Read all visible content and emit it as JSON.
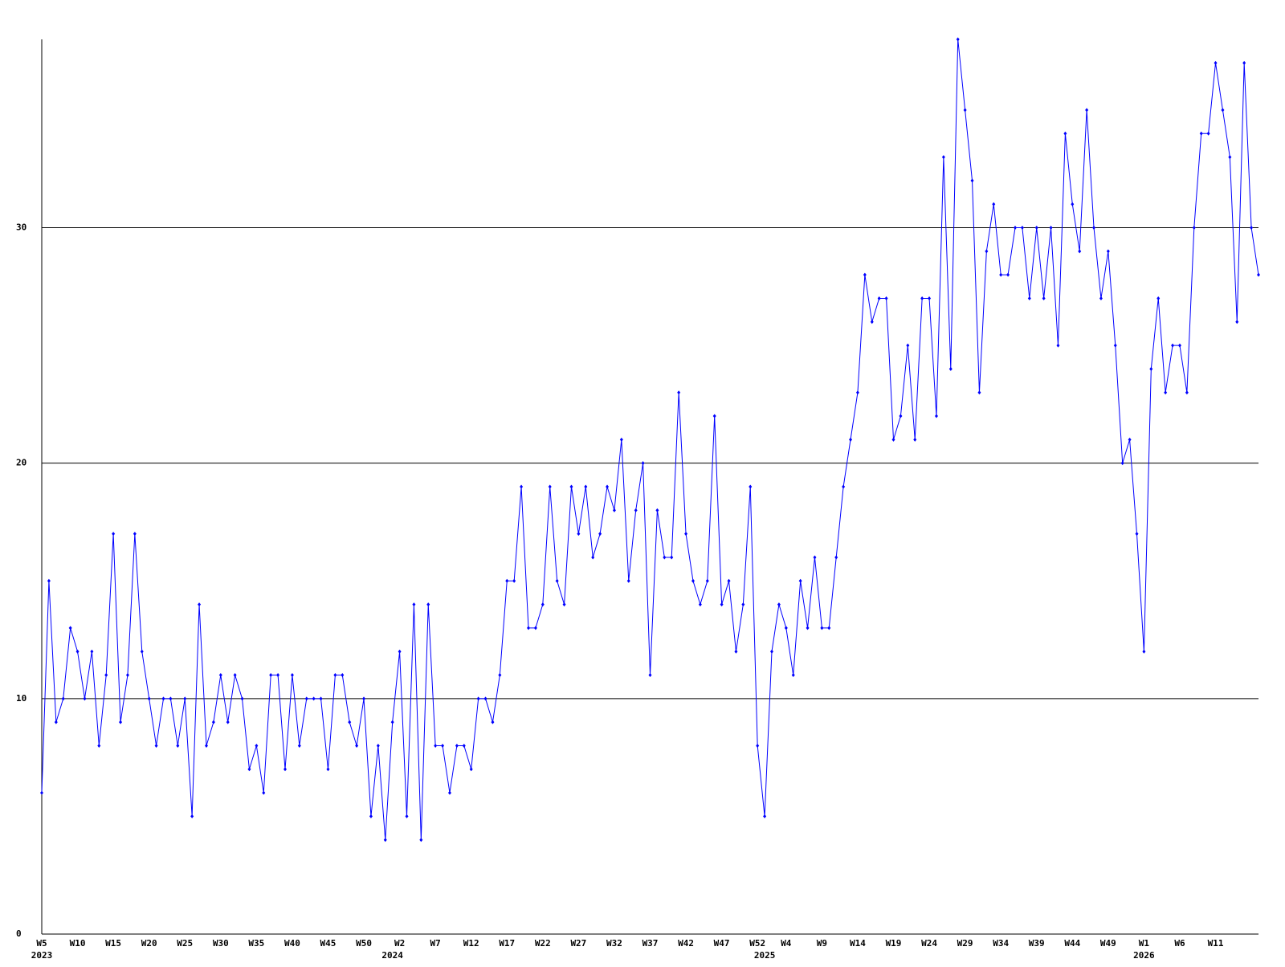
{
  "chart_data": {
    "type": "line",
    "categories": [
      "W5",
      null,
      null,
      null,
      null,
      "W10",
      null,
      null,
      null,
      null,
      "W15",
      null,
      null,
      null,
      null,
      "W20",
      null,
      null,
      null,
      null,
      "W25",
      null,
      null,
      null,
      null,
      "W30",
      null,
      null,
      null,
      null,
      "W35",
      null,
      null,
      null,
      null,
      "W40",
      null,
      null,
      null,
      null,
      "W45",
      null,
      null,
      null,
      null,
      "W50",
      null,
      null,
      null,
      null,
      "W2",
      null,
      null,
      null,
      null,
      "W7",
      null,
      null,
      null,
      null,
      "W12",
      null,
      null,
      null,
      null,
      "W17",
      null,
      null,
      null,
      null,
      "W22",
      null,
      null,
      null,
      null,
      "W27",
      null,
      null,
      null,
      null,
      "W32",
      null,
      null,
      null,
      null,
      "W37",
      null,
      null,
      null,
      null,
      "W42",
      null,
      null,
      null,
      null,
      "W47",
      null,
      null,
      null,
      null,
      "W52",
      null,
      null,
      null,
      "W4",
      null,
      null,
      null,
      null,
      "W9",
      null,
      null,
      null,
      null,
      "W14",
      null,
      null,
      null,
      null,
      "W19",
      null,
      null,
      null,
      null,
      "W24",
      null,
      null,
      null,
      null,
      "W29",
      null,
      null,
      null,
      null,
      "W34",
      null,
      null,
      null,
      null,
      "W39",
      null,
      null,
      null,
      null,
      "W44",
      null,
      null,
      null,
      null,
      "W49",
      null,
      null,
      null,
      null,
      "W1",
      null,
      null,
      null,
      null,
      "W6",
      null,
      null,
      null,
      null,
      "W11",
      null,
      null,
      null,
      null,
      null,
      null
    ],
    "x_year_labels": [
      "2023",
      null,
      null,
      null,
      null,
      null,
      null,
      null,
      null,
      null,
      null,
      null,
      null,
      null,
      null,
      null,
      null,
      null,
      null,
      null,
      null,
      null,
      null,
      null,
      null,
      null,
      null,
      null,
      null,
      null,
      null,
      null,
      null,
      null,
      null,
      null,
      null,
      null,
      null,
      null,
      null,
      null,
      null,
      null,
      null,
      null,
      null,
      null,
      null,
      "2024",
      null,
      null,
      null,
      null,
      null,
      null,
      null,
      null,
      null,
      null,
      null,
      null,
      null,
      null,
      null,
      null,
      null,
      null,
      null,
      null,
      null,
      null,
      null,
      null,
      null,
      null,
      null,
      null,
      null,
      null,
      null,
      null,
      null,
      null,
      null,
      null,
      null,
      null,
      null,
      null,
      null,
      null,
      null,
      null,
      null,
      null,
      null,
      null,
      null,
      null,
      null,
      "2025",
      null,
      null,
      null,
      null,
      null,
      null,
      null,
      null,
      null,
      null,
      null,
      null,
      null,
      null,
      null,
      null,
      null,
      null,
      null,
      null,
      null,
      null,
      null,
      null,
      null,
      null,
      null,
      null,
      null,
      null,
      null,
      null,
      null,
      null,
      null,
      null,
      null,
      null,
      null,
      null,
      null,
      null,
      null,
      null,
      null,
      null,
      null,
      null,
      null,
      null,
      null,
      null,
      "2026",
      null,
      null,
      null,
      null,
      null,
      null,
      null,
      null,
      null,
      null,
      null,
      null,
      null,
      null,
      null,
      null
    ],
    "series": [
      {
        "color": "#0000ff",
        "values": [
          6,
          15,
          9,
          10,
          13,
          12,
          10,
          12,
          8,
          11,
          17,
          9,
          11,
          17,
          12,
          10,
          8,
          10,
          10,
          8,
          10,
          5,
          14,
          8,
          9,
          11,
          9,
          11,
          10,
          7,
          8,
          6,
          11,
          11,
          7,
          11,
          8,
          10,
          10,
          10,
          7,
          11,
          11,
          9,
          8,
          10,
          5,
          8,
          4,
          9,
          12,
          5,
          14,
          4,
          14,
          8,
          8,
          6,
          8,
          8,
          7,
          10,
          10,
          9,
          11,
          15,
          15,
          19,
          13,
          13,
          14,
          19,
          15,
          14,
          19,
          17,
          19,
          16,
          17,
          19,
          18,
          21,
          15,
          18,
          20,
          11,
          18,
          16,
          16,
          23,
          17,
          15,
          14,
          15,
          22,
          14,
          15,
          12,
          14,
          19,
          8,
          5,
          12,
          14,
          13,
          11,
          15,
          13,
          16,
          13,
          13,
          16,
          19,
          21,
          23,
          28,
          26,
          27,
          27,
          21,
          22,
          25,
          21,
          27,
          27,
          22,
          33,
          24,
          38,
          35,
          32,
          23,
          29,
          31,
          28,
          28,
          30,
          30,
          27,
          30,
          27,
          30,
          25,
          34,
          31,
          29,
          35,
          30,
          27,
          29,
          25,
          20,
          21,
          17,
          12,
          24,
          27,
          23,
          25,
          25,
          23,
          30,
          34,
          34,
          37,
          35,
          33,
          26,
          37,
          30,
          28
        ]
      }
    ],
    "ylim": [
      0,
      38
    ],
    "yticks": [
      0,
      10,
      20,
      30
    ],
    "grid": true
  }
}
